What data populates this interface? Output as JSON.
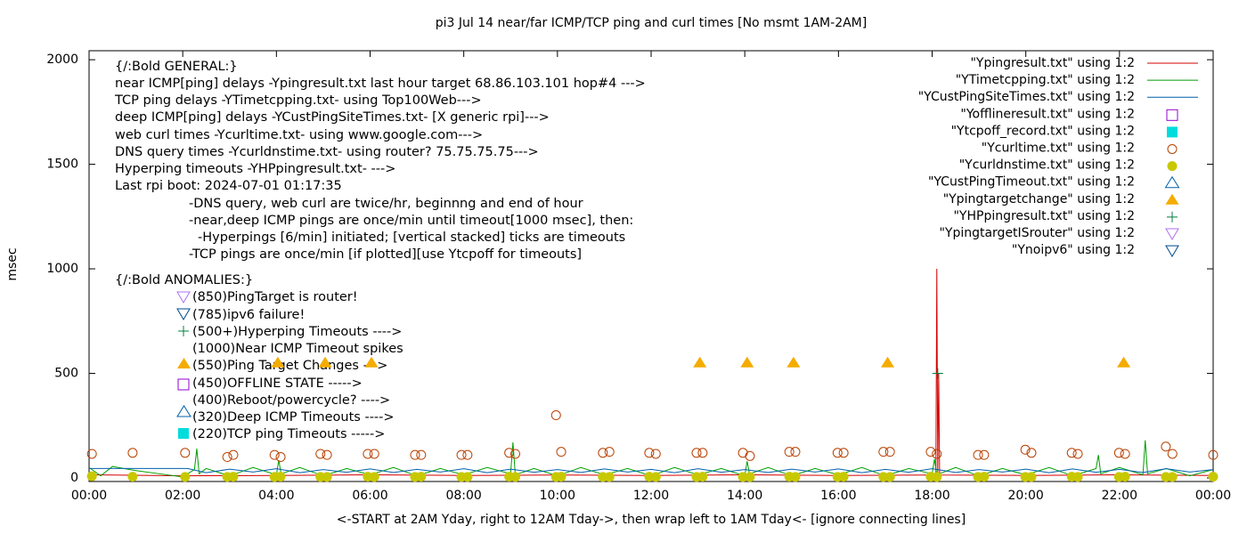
{
  "chart_data": {
    "type": "line",
    "title": "pi3 Jul 14  near/far ICMP/TCP ping and curl times [No msmt 1AM-2AM]",
    "y_label": "msec",
    "x_label": "<-START at 2AM Yday, right to 12AM Tday->, then wrap left to 1AM Tday<- [ignore connecting lines]",
    "xlim": [
      0,
      24
    ],
    "xticks": [
      {
        "value": 0,
        "label": "00:00"
      },
      {
        "value": 2,
        "label": "02:00"
      },
      {
        "value": 4,
        "label": "04:00"
      },
      {
        "value": 6,
        "label": "06:00"
      },
      {
        "value": 8,
        "label": "08:00"
      },
      {
        "value": 10,
        "label": "10:00"
      },
      {
        "value": 12,
        "label": "12:00"
      },
      {
        "value": 14,
        "label": "14:00"
      },
      {
        "value": 16,
        "label": "16:00"
      },
      {
        "value": 18,
        "label": "18:00"
      },
      {
        "value": 20,
        "label": "20:00"
      },
      {
        "value": 22,
        "label": "22:00"
      },
      {
        "value": 24,
        "label": "00:00"
      }
    ],
    "ylim": [
      -17,
      2043
    ],
    "yticks": [
      0,
      500,
      1000,
      1500,
      2000
    ],
    "grid": false,
    "legend": "top-right",
    "annotations": [
      "{/:Bold GENERAL:}",
      "near ICMP[ping] delays -Ypingresult.txt last hour target 68.86.103.101 hop#4 --->",
      "TCP ping delays -YTimetcpping.txt- using Top100Web--->",
      "deep ICMP[ping] delays -YCustPingSiteTimes.txt- [X generic rpi]--->",
      "web curl times -Ycurltime.txt- using www.google.com--->",
      "DNS query times -Ycurldnstime.txt- using router? 75.75.75.75--->",
      "Hyperping timeouts -YHPpingresult.txt- --->",
      "Last rpi boot: 2024-07-01 01:17:35",
      "-DNS query, web curl are twice/hr, beginnng and end of hour",
      "-near,deep ICMP pings are once/min until timeout[1000 msec], then:",
      "-Hyperpings [6/min] initiated; [vertical stacked] ticks are timeouts",
      "-TCP pings are once/min [if plotted][use Ytcpoff for timeouts]",
      "{/:Bold ANOMALIES:}",
      "(850)PingTarget is router!",
      "(785)ipv6 failure!",
      "(500+)Hyperping Timeouts ---->",
      "(1000)Near ICMP Timeout spikes",
      "(550)Ping Target Changes --->",
      "(450)OFFLINE STATE ----->",
      "(400)Reboot/powercycle? ---->",
      "(320)Deep ICMP Timeouts ---->",
      "(220)TCP ping Timeouts ----->"
    ],
    "series": [
      {
        "name": "\"Ypingresult.txt\" using 1:2",
        "style": "line",
        "color": "#d40000",
        "x": [
          0,
          2,
          4,
          6,
          8,
          10,
          12,
          14,
          16,
          18,
          18.08,
          18.1,
          18.12,
          18.14,
          18.16,
          20,
          22,
          24
        ],
        "values": [
          15,
          10,
          12,
          15,
          12,
          14,
          12,
          15,
          12,
          14,
          14,
          1000,
          14,
          500,
          14,
          12,
          15,
          12
        ]
      },
      {
        "name": "\"YTimetcpping.txt\" using 1:2",
        "style": "line",
        "color": "#009e00",
        "x": [
          0,
          0.25,
          0.5,
          1,
          1.5,
          2,
          2.25,
          2.3,
          2.35,
          2.5,
          3,
          3.5,
          4,
          4.05,
          4.1,
          4.5,
          5,
          5.5,
          6,
          6.5,
          7,
          7.5,
          8,
          8.5,
          9,
          9.05,
          9.1,
          9.5,
          10,
          10.5,
          11,
          11.5,
          12,
          12.5,
          13,
          13.5,
          14,
          14.05,
          14.1,
          14.5,
          15,
          15.5,
          16,
          16.5,
          17,
          17.5,
          18,
          18.05,
          18.1,
          18.5,
          19,
          19.5,
          20,
          20.5,
          21,
          21.5,
          21.55,
          21.6,
          22,
          22.5,
          22.55,
          22.6,
          23,
          23.5,
          24
        ],
        "values": [
          50,
          10,
          55,
          35,
          20,
          5,
          40,
          140,
          20,
          45,
          10,
          50,
          15,
          85,
          20,
          50,
          10,
          45,
          15,
          50,
          10,
          45,
          15,
          50,
          20,
          170,
          15,
          45,
          10,
          50,
          15,
          45,
          10,
          50,
          15,
          45,
          10,
          80,
          20,
          50,
          10,
          45,
          15,
          50,
          10,
          45,
          20,
          90,
          15,
          50,
          10,
          45,
          15,
          50,
          10,
          45,
          110,
          20,
          50,
          15,
          180,
          20,
          45,
          10,
          40
        ]
      },
      {
        "name": "\"YCustPingSiteTimes.txt\" using 1:2",
        "style": "line",
        "color": "#0060ad",
        "x": [
          0,
          2.1,
          2.5,
          3,
          3.5,
          4,
          4.5,
          5,
          5.5,
          6,
          6.5,
          7,
          7.5,
          8,
          8.5,
          9,
          9.5,
          10,
          10.5,
          11,
          11.5,
          12,
          12.5,
          13,
          13.5,
          14,
          14.5,
          15,
          15.5,
          16,
          16.5,
          17,
          17.5,
          18,
          18.5,
          19,
          19.5,
          20,
          20.5,
          21,
          21.5,
          22,
          22.5,
          23,
          23.5,
          24
        ],
        "values": [
          45,
          45,
          25,
          42,
          28,
          44,
          25,
          40,
          27,
          43,
          26,
          41,
          28,
          44,
          25,
          42,
          27,
          40,
          26,
          43,
          28,
          41,
          25,
          44,
          27,
          40,
          26,
          42,
          28,
          43,
          25,
          41,
          27,
          44,
          26,
          40,
          28,
          42,
          25,
          43,
          27,
          41,
          26,
          44,
          28,
          40
        ]
      },
      {
        "name": "\"Yofflineresult.txt\" using 1:2",
        "style": "open-square",
        "color": "#9400d3",
        "x": [],
        "values": []
      },
      {
        "name": "\"Ytcpoff_record.txt\" using 1:2",
        "style": "filled-square",
        "color": "#00dcdc",
        "x": [],
        "values": []
      },
      {
        "name": "\"Ycurltime.txt\" using 1:2",
        "style": "open-circle",
        "color": "#b84000",
        "x": [
          0.06,
          0.93,
          2.05,
          2.95,
          3.08,
          3.96,
          4.09,
          4.94,
          5.08,
          5.95,
          6.09,
          6.96,
          7.09,
          7.95,
          8.08,
          8.97,
          9.1,
          9.97,
          10.08,
          10.97,
          11.11,
          11.96,
          12.1,
          12.97,
          13.1,
          13.96,
          14.11,
          14.95,
          15.08,
          15.98,
          16.11,
          16.96,
          17.1,
          17.97,
          18.1,
          18.98,
          19.11,
          19.99,
          20.12,
          20.98,
          21.11,
          21.99,
          22.12,
          22.99,
          23.13,
          24
        ],
        "values": [
          115,
          120,
          120,
          100,
          110,
          110,
          100,
          115,
          110,
          115,
          115,
          110,
          110,
          110,
          110,
          120,
          115,
          300,
          125,
          120,
          125,
          120,
          115,
          120,
          120,
          120,
          105,
          125,
          125,
          120,
          120,
          125,
          125,
          125,
          115,
          110,
          110,
          135,
          120,
          120,
          115,
          120,
          115,
          150,
          115,
          110
        ]
      },
      {
        "name": "\"Ycurldnstime.txt\" using 1:2",
        "style": "filled-circle",
        "color": "#c8c800",
        "x": [
          0.06,
          0.93,
          2.05,
          2.95,
          3.08,
          3.96,
          4.09,
          4.94,
          5.08,
          5.95,
          6.09,
          6.96,
          7.09,
          7.95,
          8.08,
          8.97,
          9.1,
          9.97,
          10.08,
          10.97,
          11.11,
          11.96,
          12.1,
          12.97,
          13.1,
          13.96,
          14.11,
          14.95,
          15.08,
          15.98,
          16.11,
          16.96,
          17.1,
          17.97,
          18.1,
          18.98,
          19.11,
          19.99,
          20.12,
          20.98,
          21.11,
          21.99,
          22.12,
          22.99,
          23.13,
          24
        ],
        "values": [
          8,
          6,
          5,
          5,
          6,
          5,
          6,
          5,
          5,
          6,
          5,
          5,
          6,
          5,
          5,
          6,
          5,
          5,
          6,
          5,
          5,
          6,
          5,
          5,
          6,
          5,
          5,
          6,
          5,
          5,
          6,
          5,
          5,
          6,
          5,
          5,
          6,
          5,
          5,
          6,
          5,
          5,
          6,
          5,
          5,
          6
        ]
      },
      {
        "name": "\"YCustPingTimeout.txt\" using 1:2",
        "style": "open-triangle",
        "color": "#0060ad",
        "x": [],
        "values": []
      },
      {
        "name": "\"Ypingtargetchange\" using 1:2",
        "style": "filled-triangle",
        "color": "#f5ac00",
        "x": [
          4.03,
          5.04,
          6.03,
          13.04,
          14.05,
          15.04,
          17.05,
          22.09
        ],
        "values": [
          550,
          550,
          550,
          550,
          550,
          550,
          550,
          550
        ]
      },
      {
        "name": "\"YHPpingresult.txt\" using 1:2",
        "style": "plus",
        "color": "#008040",
        "x": [
          18.12
        ],
        "values": [
          500
        ]
      },
      {
        "name": "\"YpingtargetISrouter\" using 1:2",
        "style": "open-down-triangle",
        "color": "#b070f0",
        "x": [],
        "values": []
      },
      {
        "name": "\"Ynoipv6\" using 1:2",
        "style": "open-down-triangle",
        "color": "#004a8c",
        "x": [],
        "values": []
      }
    ]
  }
}
